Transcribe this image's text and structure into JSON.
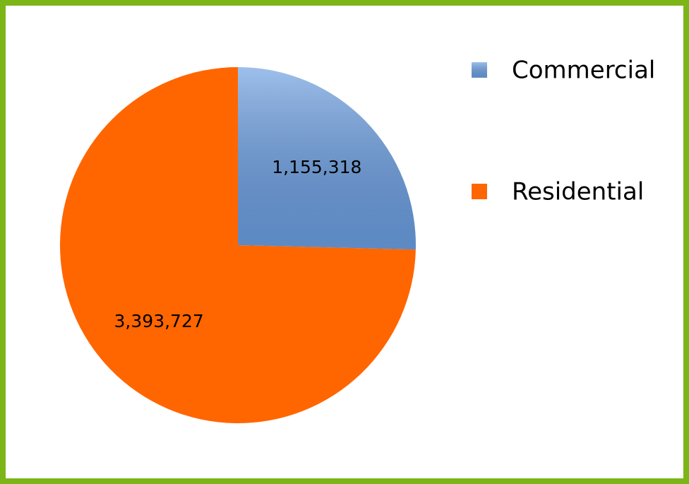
{
  "chart_data": {
    "type": "pie",
    "categories": [
      "Commercial",
      "Residential"
    ],
    "values": [
      1155318,
      3393727
    ],
    "value_labels": [
      "1,155,318",
      "3,393,727"
    ],
    "colors": [
      "#6a9de0",
      "#ff6600"
    ],
    "legend": "right"
  }
}
